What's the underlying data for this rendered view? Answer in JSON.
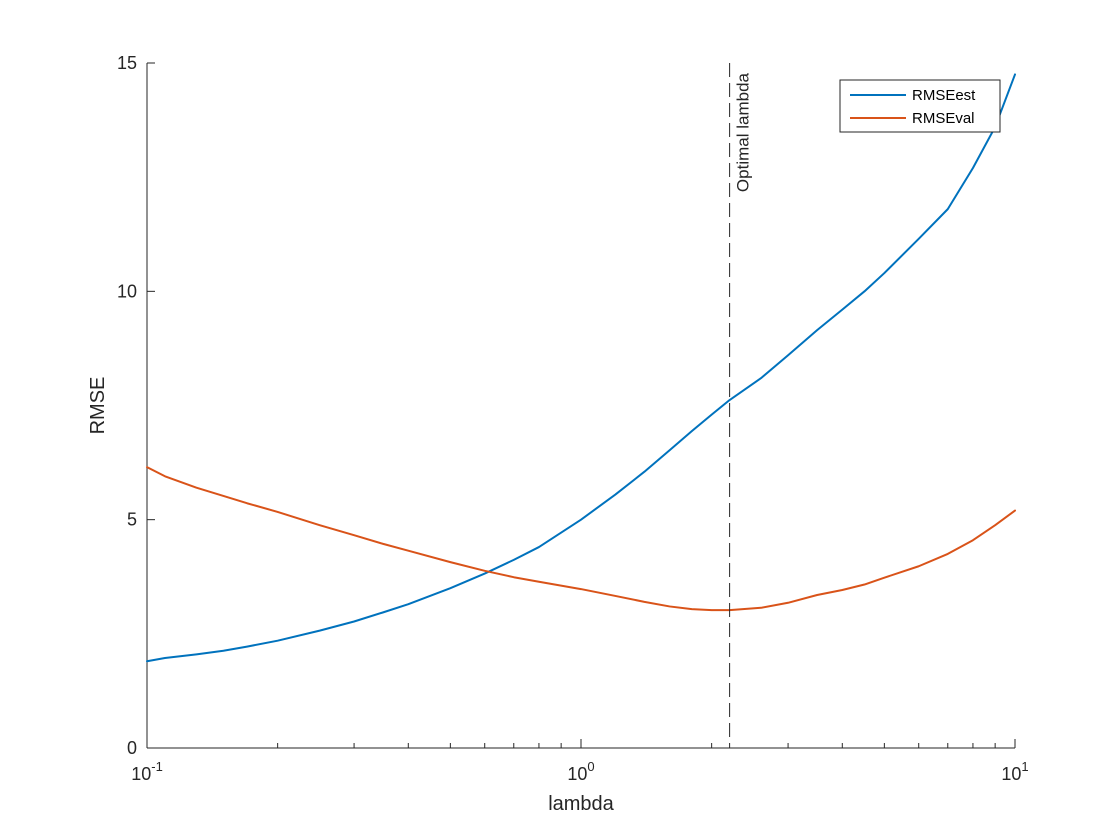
{
  "chart_data": {
    "type": "line",
    "xscale": "log",
    "xlim": [
      0.1,
      10
    ],
    "ylim": [
      0,
      15
    ],
    "xlabel": "lambda",
    "ylabel": "RMSE",
    "xticks": [
      {
        "value": 0.1,
        "base": "10",
        "exp": "-1"
      },
      {
        "value": 1,
        "base": "10",
        "exp": "0"
      },
      {
        "value": 10,
        "base": "10",
        "exp": "1"
      }
    ],
    "yticks": [
      0,
      5,
      10,
      15
    ],
    "grid": false,
    "legend_position": "top-right",
    "annotations": [
      {
        "type": "vertical-dashed-line",
        "x": 2.2,
        "text": "Optimal lambda"
      }
    ],
    "series": [
      {
        "name": "RMSEest",
        "color": "#0072BD",
        "x": [
          0.1,
          0.11,
          0.13,
          0.15,
          0.17,
          0.2,
          0.25,
          0.3,
          0.35,
          0.4,
          0.5,
          0.6,
          0.7,
          0.8,
          1.0,
          1.2,
          1.4,
          1.6,
          1.8,
          2.0,
          2.2,
          2.6,
          3.0,
          3.5,
          4.0,
          4.5,
          5.0,
          6.0,
          7.0,
          8.0,
          9.0,
          10.0
        ],
        "y": [
          1.9,
          1.97,
          2.05,
          2.13,
          2.22,
          2.35,
          2.57,
          2.77,
          2.97,
          3.15,
          3.5,
          3.82,
          4.12,
          4.4,
          5.0,
          5.55,
          6.05,
          6.52,
          6.94,
          7.3,
          7.62,
          8.1,
          8.6,
          9.15,
          9.6,
          10.0,
          10.4,
          11.15,
          11.8,
          12.7,
          13.6,
          14.75
        ]
      },
      {
        "name": "RMSEval",
        "color": "#D95319",
        "x": [
          0.1,
          0.11,
          0.13,
          0.15,
          0.17,
          0.2,
          0.25,
          0.3,
          0.35,
          0.4,
          0.5,
          0.6,
          0.7,
          0.8,
          1.0,
          1.2,
          1.4,
          1.6,
          1.8,
          2.0,
          2.2,
          2.6,
          3.0,
          3.5,
          4.0,
          4.5,
          5.0,
          6.0,
          7.0,
          8.0,
          9.0,
          10.0
        ],
        "y": [
          6.15,
          5.95,
          5.7,
          5.52,
          5.36,
          5.17,
          4.88,
          4.66,
          4.47,
          4.32,
          4.07,
          3.88,
          3.74,
          3.64,
          3.48,
          3.33,
          3.2,
          3.1,
          3.04,
          3.02,
          3.02,
          3.07,
          3.18,
          3.35,
          3.46,
          3.58,
          3.73,
          3.98,
          4.25,
          4.55,
          4.88,
          5.2
        ]
      }
    ]
  }
}
